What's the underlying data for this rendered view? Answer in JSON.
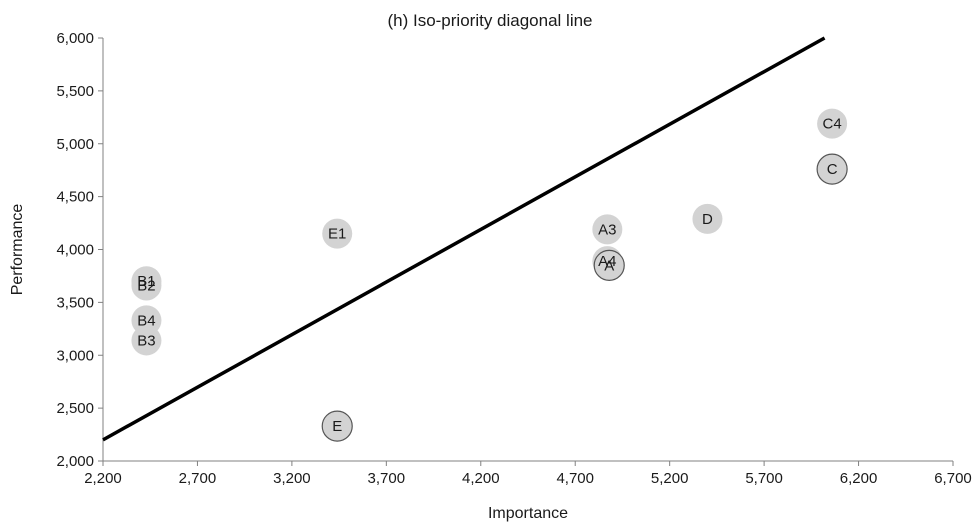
{
  "chart_data": {
    "type": "scatter",
    "title": "(h) Iso-priority diagonal line",
    "xlabel": "Importance",
    "ylabel": "Performance",
    "xlim": [
      2200,
      6700
    ],
    "ylim": [
      2000,
      6000
    ],
    "xticks": [
      2200,
      2700,
      3200,
      3700,
      4200,
      4700,
      5200,
      5700,
      6200,
      6700
    ],
    "yticks": [
      2000,
      2500,
      3000,
      3500,
      4000,
      4500,
      5000,
      5500,
      6000
    ],
    "xtick_labels": [
      "2,200",
      "2,700",
      "3,200",
      "3,700",
      "4,200",
      "4,700",
      "5,200",
      "5,700",
      "6,200",
      "6,700"
    ],
    "ytick_labels": [
      "2,000",
      "2,500",
      "3,000",
      "3,500",
      "4,000",
      "4,500",
      "5,000",
      "5,500",
      "6,000"
    ],
    "grid": false,
    "legend": "none",
    "points": [
      {
        "label": "B1",
        "x": 2430,
        "y": 3700,
        "group": "sub"
      },
      {
        "label": "B2",
        "x": 2430,
        "y": 3660,
        "group": "sub"
      },
      {
        "label": "B4",
        "x": 2430,
        "y": 3330,
        "group": "sub"
      },
      {
        "label": "B3",
        "x": 2430,
        "y": 3140,
        "group": "sub"
      },
      {
        "label": "E1",
        "x": 3440,
        "y": 4150,
        "group": "sub"
      },
      {
        "label": "E",
        "x": 3440,
        "y": 2330,
        "group": "main"
      },
      {
        "label": "A3",
        "x": 4870,
        "y": 4190,
        "group": "sub"
      },
      {
        "label": "A4",
        "x": 4870,
        "y": 3890,
        "group": "sub"
      },
      {
        "label": "A",
        "x": 4880,
        "y": 3850,
        "group": "main"
      },
      {
        "label": "D",
        "x": 5400,
        "y": 4290,
        "group": "sub"
      },
      {
        "label": "C4",
        "x": 6060,
        "y": 5190,
        "group": "sub"
      },
      {
        "label": "C",
        "x": 6060,
        "y": 4760,
        "group": "main"
      }
    ],
    "diagonal_line": {
      "x": [
        2200,
        6020
      ],
      "y": [
        2200,
        6000
      ]
    },
    "colors": {
      "marker_fill": "#d3d3d3",
      "main_marker_stroke": "#555555",
      "line": "#000000",
      "axis": "#808080"
    }
  }
}
